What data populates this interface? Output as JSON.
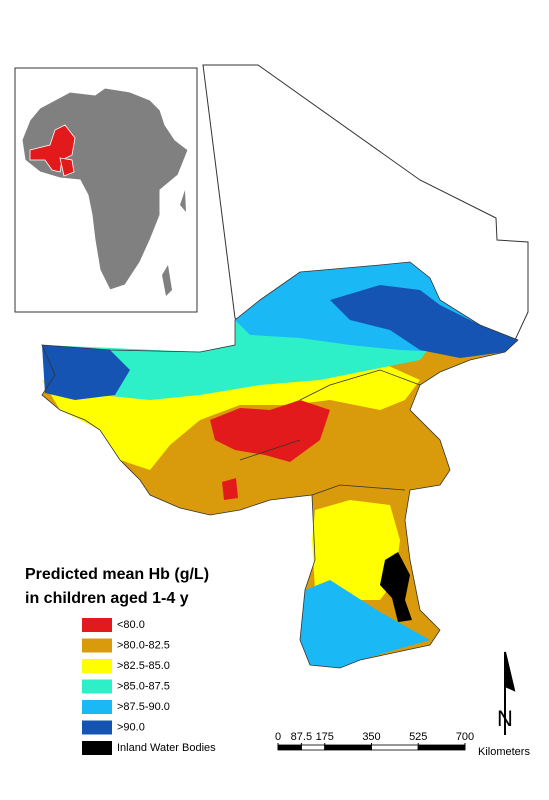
{
  "legend": {
    "title_lines": [
      "Predicted mean Hb (g/L)",
      "in children aged 1-4 y"
    ],
    "items": [
      {
        "label": "<80.0",
        "color": "#e31a1c"
      },
      {
        "label": ">80.0-82.5",
        "color": "#d99a0b"
      },
      {
        "label": ">82.5-85.0",
        "color": "#ffff00"
      },
      {
        "label": ">85.0-87.5",
        "color": "#2ef0c8"
      },
      {
        "label": ">87.5-90.0",
        "color": "#1ab8f5"
      },
      {
        "label": ">90.0",
        "color": "#1654b4"
      },
      {
        "label": "Inland Water Bodies",
        "color": "#000000"
      }
    ]
  },
  "scale_bar": {
    "ticks": [
      0,
      87.5,
      175,
      350,
      525,
      700
    ],
    "unit": "Kilometers"
  },
  "north_arrow": {
    "label": "N"
  }
}
